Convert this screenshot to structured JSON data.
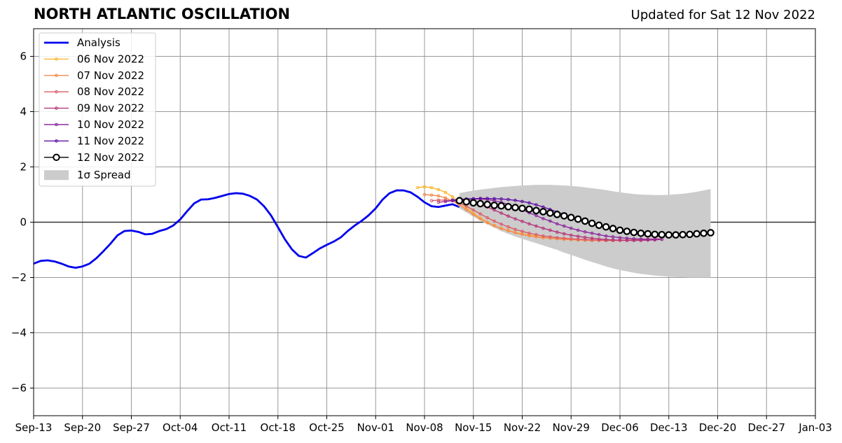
{
  "title": "NORTH ATLANTIC OSCILLATION",
  "subtitle": "Updated for Sat 12 Nov 2022",
  "colors": {
    "analysis": "#0000ee",
    "spread": "#cccccc",
    "grid": "#999999",
    "forecast": [
      "#fcb52d",
      "#f58a4b",
      "#db5c68",
      "#b5367a",
      "#8c2a9e",
      "#5d0fa2",
      "#000000"
    ]
  },
  "chart_data": {
    "type": "line",
    "title": "NORTH ATLANTIC OSCILLATION",
    "xlabel": "",
    "ylabel": "",
    "xlim": [
      "2022-09-13",
      "2023-01-03"
    ],
    "ylim": [
      -7,
      7
    ],
    "grid": true,
    "legend_position": "top-left",
    "xticks": [
      "Sep-13",
      "Sep-20",
      "Sep-27",
      "Oct-04",
      "Oct-11",
      "Oct-18",
      "Oct-25",
      "Nov-01",
      "Nov-08",
      "Nov-15",
      "Nov-22",
      "Nov-29",
      "Dec-06",
      "Dec-13",
      "Dec-20",
      "Dec-27",
      "Jan-03"
    ],
    "yticks": [
      "−6",
      "−4",
      "−2",
      "0",
      "2",
      "4",
      "6"
    ],
    "series": [
      {
        "name": "Analysis",
        "start": "2022-09-13",
        "values": [
          -1.5,
          -1.4,
          -1.38,
          -1.42,
          -1.5,
          -1.6,
          -1.65,
          -1.6,
          -1.5,
          -1.3,
          -1.05,
          -0.78,
          -0.48,
          -0.32,
          -0.3,
          -0.35,
          -0.44,
          -0.42,
          -0.32,
          -0.25,
          -0.12,
          0.1,
          0.4,
          0.68,
          0.82,
          0.83,
          0.88,
          0.95,
          1.02,
          1.05,
          1.03,
          0.95,
          0.82,
          0.58,
          0.25,
          -0.18,
          -0.62,
          -0.98,
          -1.22,
          -1.28,
          -1.12,
          -0.95,
          -0.82,
          -0.7,
          -0.55,
          -0.32,
          -0.12,
          0.05,
          0.25,
          0.5,
          0.82,
          1.05,
          1.15,
          1.15,
          1.08,
          0.92,
          0.72,
          0.58,
          0.55,
          0.6,
          0.65,
          0.55
        ]
      },
      {
        "name": "06 Nov 2022",
        "start": "2022-11-07",
        "values": [
          1.25,
          1.28,
          1.25,
          1.18,
          1.08,
          0.92,
          0.72,
          0.52,
          0.32,
          0.15,
          0.0,
          -0.12,
          -0.22,
          -0.3,
          -0.37,
          -0.42,
          -0.47,
          -0.51,
          -0.55,
          -0.58,
          -0.6,
          -0.62,
          -0.63,
          -0.64,
          -0.65,
          -0.65,
          -0.66,
          -0.66,
          -0.66,
          -0.66,
          -0.65,
          -0.64,
          -0.63,
          -0.62,
          -0.61,
          -0.6
        ]
      },
      {
        "name": "07 Nov 2022",
        "start": "2022-11-08",
        "values": [
          1.0,
          0.98,
          0.95,
          0.88,
          0.78,
          0.62,
          0.45,
          0.28,
          0.12,
          -0.02,
          -0.13,
          -0.23,
          -0.31,
          -0.38,
          -0.44,
          -0.49,
          -0.53,
          -0.56,
          -0.58,
          -0.6,
          -0.62,
          -0.63,
          -0.64,
          -0.65,
          -0.66,
          -0.66,
          -0.66,
          -0.66,
          -0.65,
          -0.64,
          -0.63,
          -0.62,
          -0.61,
          -0.6,
          -0.6
        ]
      },
      {
        "name": "08 Nov 2022",
        "start": "2022-11-09",
        "values": [
          0.78,
          0.8,
          0.8,
          0.78,
          0.7,
          0.58,
          0.44,
          0.3,
          0.16,
          0.04,
          -0.07,
          -0.17,
          -0.26,
          -0.33,
          -0.4,
          -0.45,
          -0.5,
          -0.53,
          -0.56,
          -0.58,
          -0.6,
          -0.62,
          -0.63,
          -0.64,
          -0.65,
          -0.66,
          -0.66,
          -0.66,
          -0.65,
          -0.64,
          -0.63,
          -0.62,
          -0.61,
          -0.6
        ]
      },
      {
        "name": "09 Nov 2022",
        "start": "2022-11-10",
        "values": [
          0.72,
          0.75,
          0.78,
          0.8,
          0.8,
          0.75,
          0.66,
          0.55,
          0.44,
          0.33,
          0.22,
          0.12,
          0.03,
          -0.06,
          -0.14,
          -0.22,
          -0.29,
          -0.36,
          -0.42,
          -0.47,
          -0.51,
          -0.55,
          -0.58,
          -0.61,
          -0.63,
          -0.64,
          -0.65,
          -0.66,
          -0.66,
          -0.66,
          -0.65,
          -0.64,
          -0.62
        ]
      },
      {
        "name": "10 Nov 2022",
        "start": "2022-11-11",
        "values": [
          0.75,
          0.78,
          0.8,
          0.82,
          0.84,
          0.84,
          0.82,
          0.78,
          0.72,
          0.64,
          0.55,
          0.45,
          0.34,
          0.24,
          0.13,
          0.04,
          -0.06,
          -0.14,
          -0.22,
          -0.29,
          -0.35,
          -0.4,
          -0.45,
          -0.5,
          -0.53,
          -0.56,
          -0.58,
          -0.6,
          -0.61,
          -0.62,
          -0.62,
          -0.62
        ]
      },
      {
        "name": "11 Nov 2022",
        "start": "2022-11-12",
        "values": [
          0.8,
          0.82,
          0.84,
          0.85,
          0.86,
          0.86,
          0.85,
          0.84,
          0.82,
          0.79,
          0.75,
          0.7,
          0.63,
          0.55,
          0.46,
          0.37,
          0.28,
          0.19,
          0.1,
          0.02,
          -0.06,
          -0.13,
          -0.2,
          -0.26,
          -0.32,
          -0.37,
          -0.41,
          -0.45,
          -0.48,
          -0.5,
          -0.52
        ]
      },
      {
        "name": "12 Nov 2022",
        "start": "2022-11-13",
        "values": [
          0.78,
          0.74,
          0.7,
          0.67,
          0.64,
          0.61,
          0.59,
          0.56,
          0.53,
          0.5,
          0.47,
          0.42,
          0.38,
          0.33,
          0.28,
          0.23,
          0.17,
          0.11,
          0.04,
          -0.04,
          -0.11,
          -0.17,
          -0.23,
          -0.29,
          -0.33,
          -0.37,
          -0.4,
          -0.42,
          -0.44,
          -0.45,
          -0.46,
          -0.46,
          -0.45,
          -0.44,
          -0.42,
          -0.4,
          -0.38
        ]
      }
    ],
    "spread": {
      "name": "1σ Spread",
      "start": "2022-11-13",
      "upper": [
        1.05,
        1.1,
        1.14,
        1.18,
        1.21,
        1.24,
        1.27,
        1.29,
        1.31,
        1.33,
        1.34,
        1.35,
        1.35,
        1.35,
        1.34,
        1.33,
        1.31,
        1.29,
        1.26,
        1.23,
        1.2,
        1.16,
        1.12,
        1.08,
        1.05,
        1.02,
        1.0,
        0.99,
        0.98,
        0.98,
        0.99,
        1.01,
        1.03,
        1.06,
        1.1,
        1.15,
        1.2
      ],
      "lower": [
        0.5,
        0.35,
        0.2,
        0.06,
        -0.08,
        -0.2,
        -0.32,
        -0.42,
        -0.52,
        -0.6,
        -0.68,
        -0.76,
        -0.84,
        -0.92,
        -1.0,
        -1.1,
        -1.18,
        -1.27,
        -1.36,
        -1.44,
        -1.52,
        -1.6,
        -1.67,
        -1.73,
        -1.78,
        -1.83,
        -1.87,
        -1.9,
        -1.93,
        -1.95,
        -1.97,
        -1.98,
        -1.99,
        -2.0,
        -2.0,
        -2.0,
        -2.0
      ]
    }
  }
}
